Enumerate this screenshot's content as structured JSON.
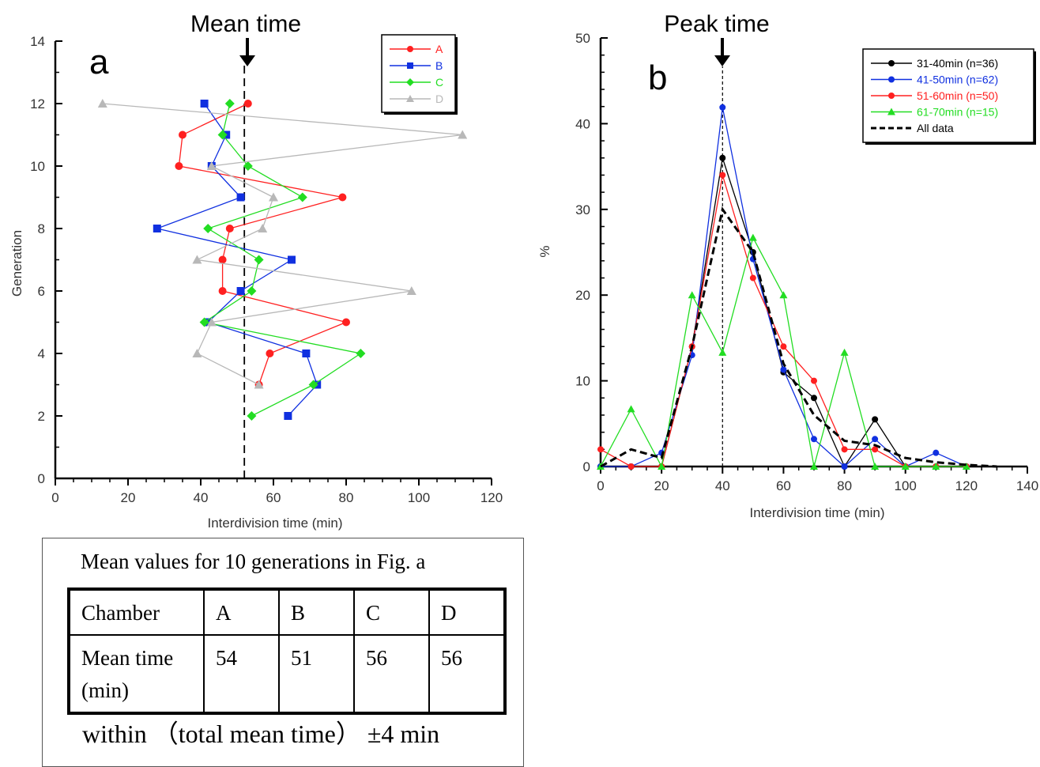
{
  "chart_data": [
    {
      "panel": "a",
      "type": "line",
      "title": "Mean time",
      "xlabel": "Interdivision time (min)",
      "ylabel": "Generation",
      "xlim": [
        0,
        120
      ],
      "ylim": [
        0,
        14
      ],
      "x_ticks": [
        0,
        20,
        40,
        60,
        80,
        100,
        120
      ],
      "y_ticks": [
        0,
        2,
        4,
        6,
        8,
        10,
        12,
        14
      ],
      "reference_line_x": 52,
      "legend_position": "top-right",
      "series": [
        {
          "name": "A",
          "color": "#ff2020",
          "marker": "circle",
          "points": [
            [
              56,
              3
            ],
            [
              59,
              4
            ],
            [
              80,
              5
            ],
            [
              46,
              6
            ],
            [
              46,
              7
            ],
            [
              48,
              8
            ],
            [
              79,
              9
            ],
            [
              34,
              10
            ],
            [
              35,
              11
            ],
            [
              53,
              12
            ]
          ]
        },
        {
          "name": "B",
          "color": "#1030e0",
          "marker": "square",
          "points": [
            [
              64,
              2
            ],
            [
              72,
              3
            ],
            [
              69,
              4
            ],
            [
              42,
              5
            ],
            [
              51,
              6
            ],
            [
              65,
              7
            ],
            [
              28,
              8
            ],
            [
              51,
              9
            ],
            [
              43,
              10
            ],
            [
              47,
              11
            ],
            [
              41,
              12
            ]
          ]
        },
        {
          "name": "C",
          "color": "#22dd22",
          "marker": "diamond",
          "points": [
            [
              54,
              2
            ],
            [
              71,
              3
            ],
            [
              84,
              4
            ],
            [
              41,
              5
            ],
            [
              54,
              6
            ],
            [
              56,
              7
            ],
            [
              42,
              8
            ],
            [
              68,
              9
            ],
            [
              53,
              10
            ],
            [
              46,
              11
            ],
            [
              48,
              12
            ]
          ]
        },
        {
          "name": "D",
          "color": "#b8b8b8",
          "marker": "triangle",
          "points": [
            [
              56,
              3
            ],
            [
              39,
              4
            ],
            [
              43,
              5
            ],
            [
              98,
              6
            ],
            [
              39,
              7
            ],
            [
              57,
              8
            ],
            [
              60,
              9
            ],
            [
              43,
              10
            ],
            [
              112,
              11
            ],
            [
              13,
              12
            ]
          ]
        }
      ]
    },
    {
      "panel": "b",
      "type": "line",
      "title": "Peak time",
      "xlabel": "Interdivision time (min)",
      "ylabel": "%",
      "xlim": [
        0,
        140
      ],
      "ylim": [
        0,
        50
      ],
      "x_ticks": [
        0,
        20,
        40,
        60,
        80,
        100,
        120,
        140
      ],
      "y_ticks": [
        0,
        10,
        20,
        30,
        40,
        50
      ],
      "reference_line_x": 40,
      "legend_position": "top-right",
      "series": [
        {
          "name": "31-40min (n=36)",
          "color": "#000000",
          "marker": "circle",
          "points": [
            [
              0,
              0
            ],
            [
              10,
              0
            ],
            [
              20,
              0
            ],
            [
              30,
              14
            ],
            [
              40,
              36
            ],
            [
              50,
              25
            ],
            [
              60,
              11
            ],
            [
              70,
              8
            ],
            [
              80,
              0
            ],
            [
              90,
              5.5
            ],
            [
              100,
              0
            ],
            [
              110,
              0
            ],
            [
              120,
              0
            ]
          ]
        },
        {
          "name": "41-50min (n=62)",
          "color": "#1030e0",
          "marker": "circle",
          "points": [
            [
              0,
              0
            ],
            [
              10,
              0
            ],
            [
              20,
              1.6
            ],
            [
              30,
              13
            ],
            [
              40,
              41.9
            ],
            [
              50,
              24.2
            ],
            [
              60,
              11.3
            ],
            [
              70,
              3.2
            ],
            [
              80,
              0
            ],
            [
              90,
              3.2
            ],
            [
              100,
              0
            ],
            [
              110,
              1.6
            ],
            [
              120,
              0
            ]
          ]
        },
        {
          "name": "51-60min (n=50)",
          "color": "#ff2020",
          "marker": "circle",
          "points": [
            [
              0,
              2
            ],
            [
              10,
              0
            ],
            [
              20,
              0
            ],
            [
              30,
              14
            ],
            [
              40,
              34
            ],
            [
              50,
              22
            ],
            [
              60,
              14
            ],
            [
              70,
              10
            ],
            [
              80,
              2
            ],
            [
              90,
              2
            ],
            [
              100,
              0
            ],
            [
              110,
              0
            ],
            [
              120,
              0
            ]
          ]
        },
        {
          "name": "61-70min (n=15)",
          "color": "#22dd22",
          "marker": "triangle",
          "points": [
            [
              0,
              0
            ],
            [
              10,
              6.7
            ],
            [
              20,
              0
            ],
            [
              30,
              20
            ],
            [
              40,
              13.3
            ],
            [
              50,
              26.7
            ],
            [
              60,
              20
            ],
            [
              70,
              0
            ],
            [
              80,
              13.3
            ],
            [
              90,
              0
            ],
            [
              100,
              0
            ],
            [
              110,
              0
            ],
            [
              120,
              0
            ]
          ]
        },
        {
          "name": "All data",
          "color": "#000000",
          "marker": "none",
          "dashed": true,
          "points": [
            [
              0,
              0
            ],
            [
              10,
              2
            ],
            [
              20,
              1
            ],
            [
              30,
              14
            ],
            [
              40,
              30
            ],
            [
              50,
              25
            ],
            [
              60,
              12
            ],
            [
              70,
              6
            ],
            [
              80,
              3
            ],
            [
              90,
              2.5
            ],
            [
              100,
              1
            ],
            [
              110,
              0.5
            ],
            [
              120,
              0.2
            ],
            [
              130,
              0
            ]
          ]
        }
      ]
    }
  ],
  "table": {
    "caption": "Mean values for 10 generations in Fig. a",
    "header_label": "Chamber",
    "row_label": "Mean time (min)",
    "columns": [
      "A",
      "B",
      "C",
      "D"
    ],
    "values": [
      "54",
      "51",
      "56",
      "56"
    ],
    "note": "within （total mean time） ±4 min"
  }
}
